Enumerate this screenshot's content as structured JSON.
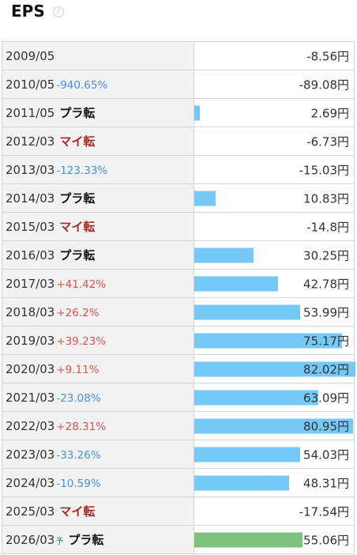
{
  "header": {
    "title": "EPS",
    "help_icon": "?"
  },
  "chart_data": {
    "type": "bar",
    "unit": "円",
    "bar_max": 82.02,
    "rows": [
      {
        "year": "2009/05",
        "change": "",
        "change_dir": "",
        "turn": "",
        "turn_type": "",
        "forecast": false,
        "value": -8.56,
        "value_text": "-8.56円"
      },
      {
        "year": "2010/05",
        "change": "-940.65%",
        "change_dir": "down",
        "turn": "",
        "turn_type": "",
        "forecast": false,
        "value": -89.08,
        "value_text": "-89.08円"
      },
      {
        "year": "2011/05",
        "change": "",
        "change_dir": "",
        "turn": "プラ転",
        "turn_type": "plus",
        "forecast": false,
        "value": 2.69,
        "value_text": "2.69円"
      },
      {
        "year": "2012/03",
        "change": "",
        "change_dir": "",
        "turn": "マイ転",
        "turn_type": "minus",
        "forecast": false,
        "value": -6.73,
        "value_text": "-6.73円"
      },
      {
        "year": "2013/03",
        "change": "-123.33%",
        "change_dir": "down",
        "turn": "",
        "turn_type": "",
        "forecast": false,
        "value": -15.03,
        "value_text": "-15.03円"
      },
      {
        "year": "2014/03",
        "change": "",
        "change_dir": "",
        "turn": "プラ転",
        "turn_type": "plus",
        "forecast": false,
        "value": 10.83,
        "value_text": "10.83円"
      },
      {
        "year": "2015/03",
        "change": "",
        "change_dir": "",
        "turn": "マイ転",
        "turn_type": "minus",
        "forecast": false,
        "value": -14.8,
        "value_text": "-14.8円"
      },
      {
        "year": "2016/03",
        "change": "",
        "change_dir": "",
        "turn": "プラ転",
        "turn_type": "plus",
        "forecast": false,
        "value": 30.25,
        "value_text": "30.25円"
      },
      {
        "year": "2017/03",
        "change": "+41.42%",
        "change_dir": "up",
        "turn": "",
        "turn_type": "",
        "forecast": false,
        "value": 42.78,
        "value_text": "42.78円"
      },
      {
        "year": "2018/03",
        "change": "+26.2%",
        "change_dir": "up",
        "turn": "",
        "turn_type": "",
        "forecast": false,
        "value": 53.99,
        "value_text": "53.99円"
      },
      {
        "year": "2019/03",
        "change": "+39.23%",
        "change_dir": "up",
        "turn": "",
        "turn_type": "",
        "forecast": false,
        "value": 75.17,
        "value_text": "75.17円"
      },
      {
        "year": "2020/03",
        "change": "+9.11%",
        "change_dir": "up",
        "turn": "",
        "turn_type": "",
        "forecast": false,
        "value": 82.02,
        "value_text": "82.02円"
      },
      {
        "year": "2021/03",
        "change": "-23.08%",
        "change_dir": "down",
        "turn": "",
        "turn_type": "",
        "forecast": false,
        "value": 63.09,
        "value_text": "63.09円"
      },
      {
        "year": "2022/03",
        "change": "+28.31%",
        "change_dir": "up",
        "turn": "",
        "turn_type": "",
        "forecast": false,
        "value": 80.95,
        "value_text": "80.95円"
      },
      {
        "year": "2023/03",
        "change": "-33.26%",
        "change_dir": "down",
        "turn": "",
        "turn_type": "",
        "forecast": false,
        "value": 54.03,
        "value_text": "54.03円"
      },
      {
        "year": "2024/03",
        "change": "-10.59%",
        "change_dir": "down",
        "turn": "",
        "turn_type": "",
        "forecast": false,
        "value": 48.31,
        "value_text": "48.31円"
      },
      {
        "year": "2025/03",
        "change": "",
        "change_dir": "",
        "turn": "マイ転",
        "turn_type": "minus",
        "forecast": false,
        "value": -17.54,
        "value_text": "-17.54円"
      },
      {
        "year": "2026/03",
        "change": "",
        "change_dir": "",
        "turn": "プラ転",
        "turn_type": "plus",
        "forecast": true,
        "forecast_mark": "予",
        "value": 55.06,
        "value_text": "55.06円"
      }
    ]
  },
  "colors": {
    "bar": "#74c9f7",
    "forecast_bar": "#7fc27f",
    "up": "#d9534f",
    "down": "#4a90d9",
    "minus_turn": "#a52a2a"
  }
}
